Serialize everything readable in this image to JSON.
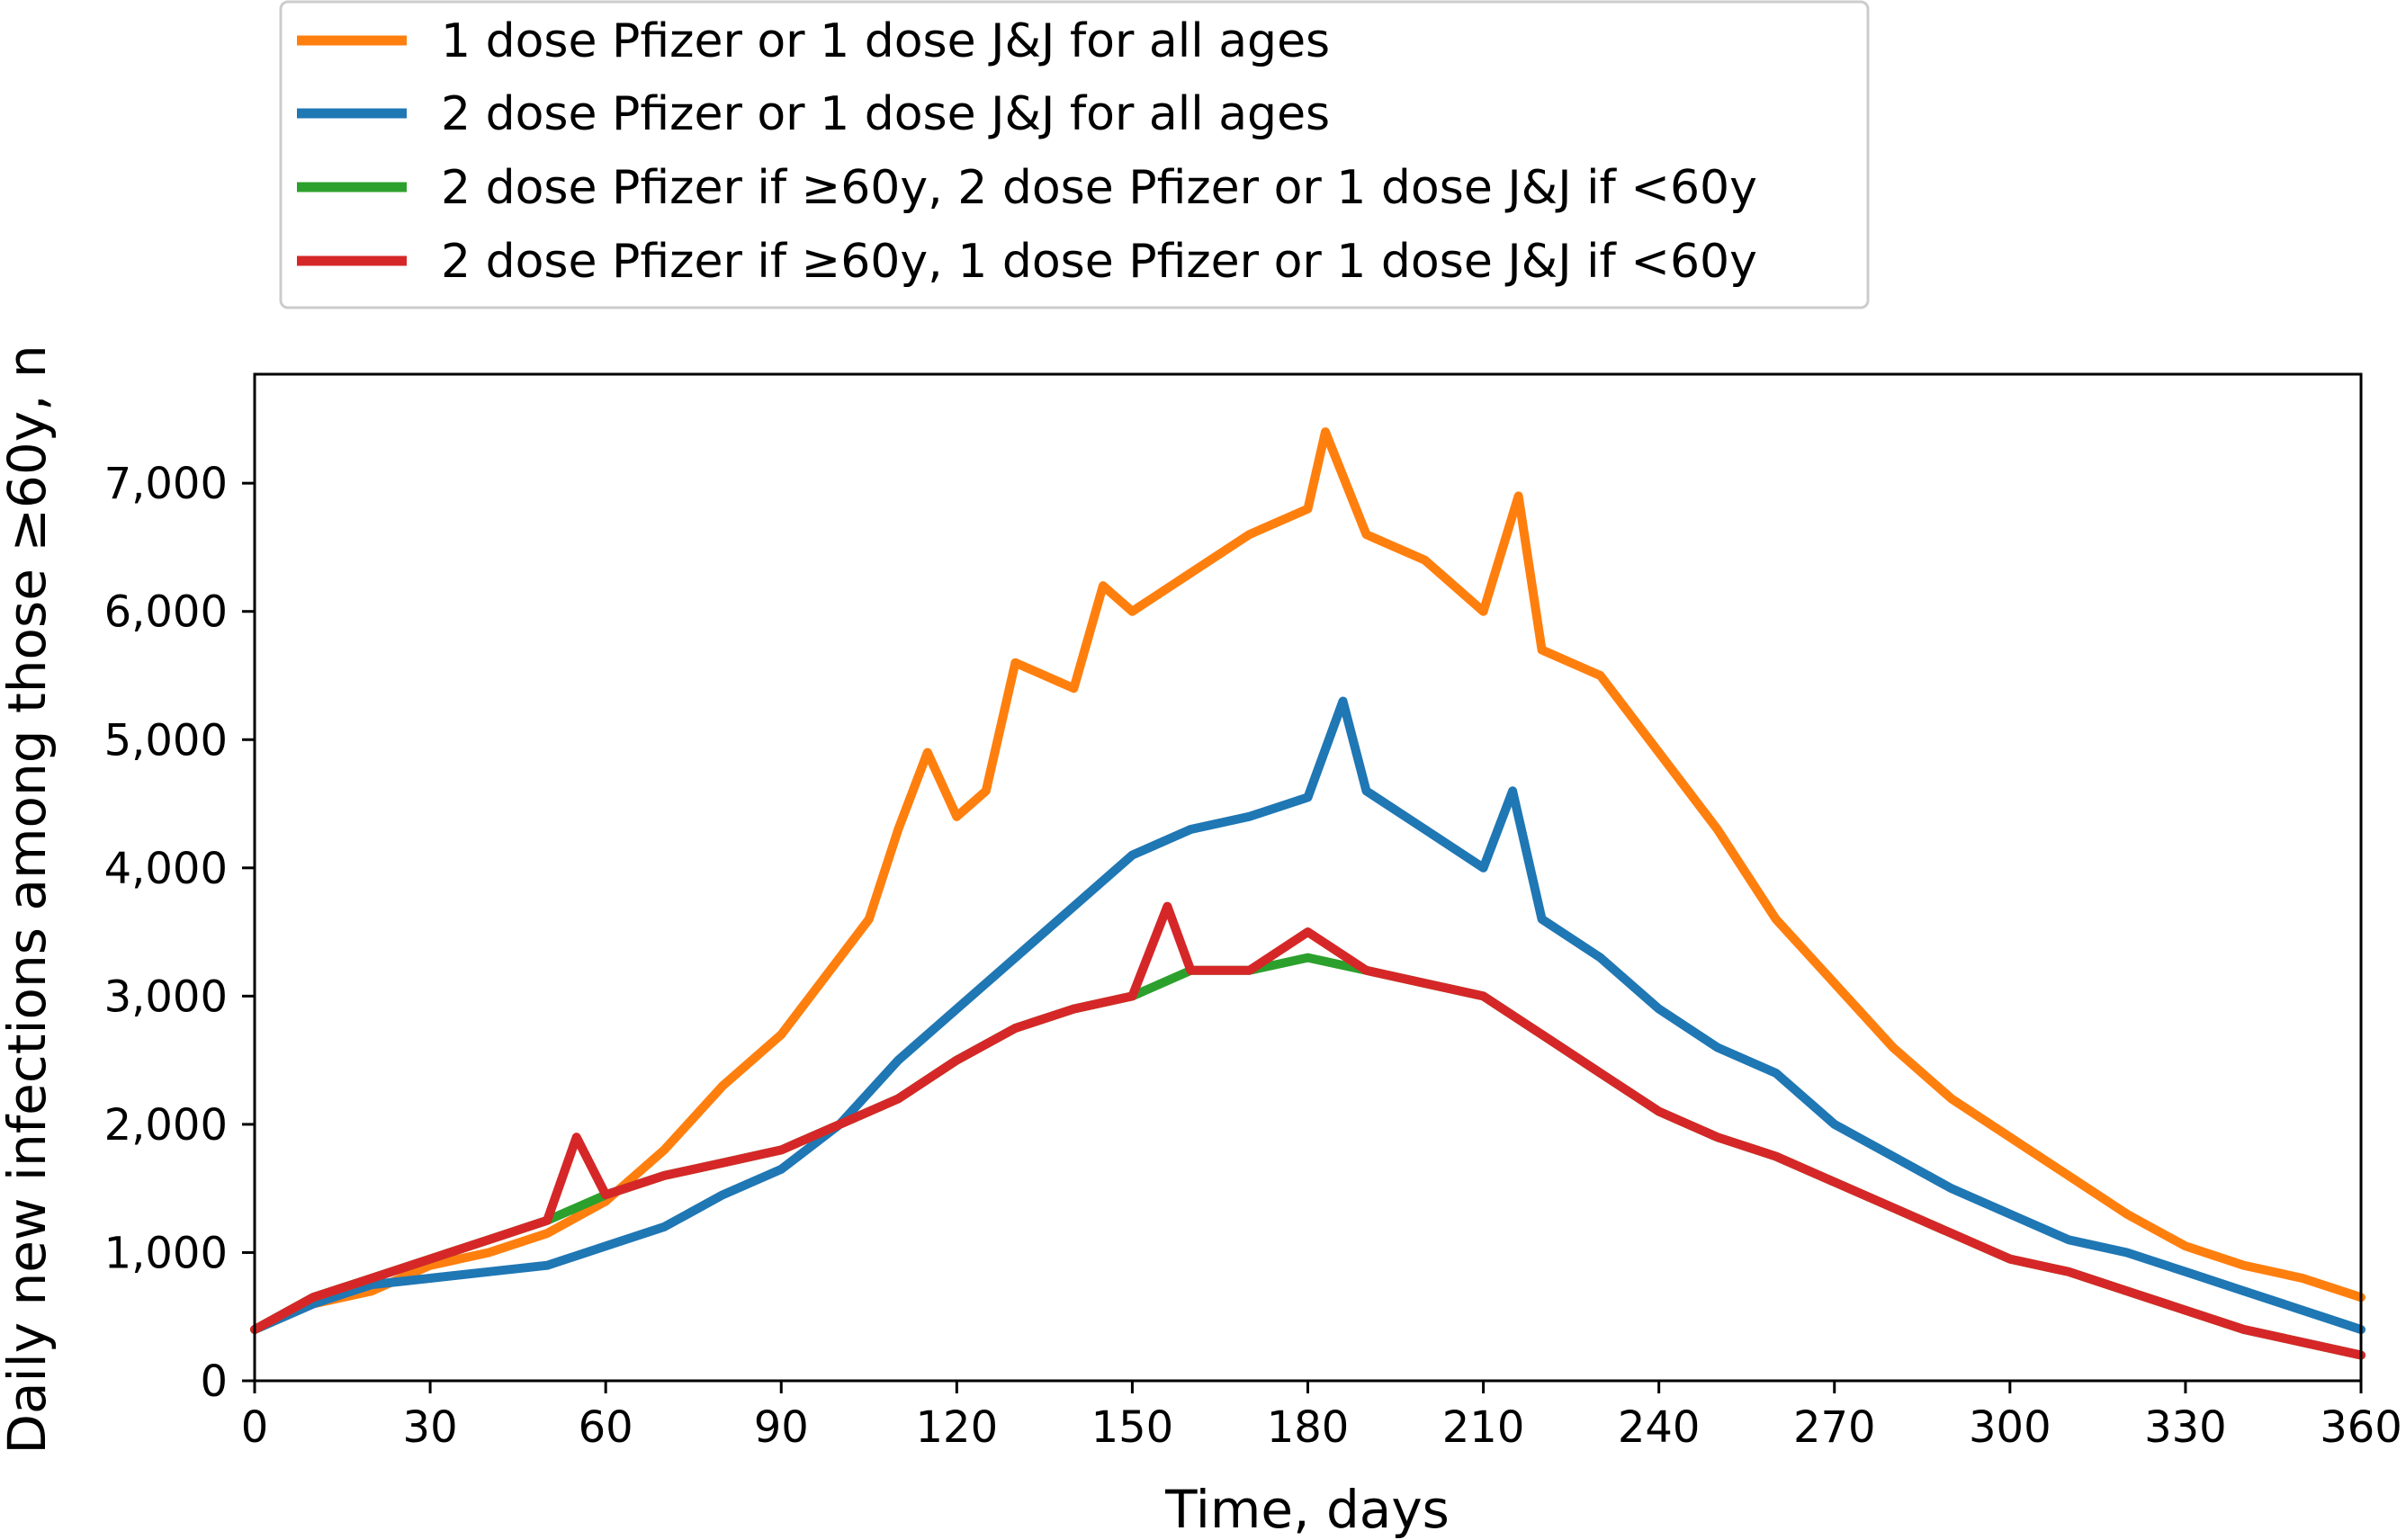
{
  "chart_data": {
    "type": "line",
    "xlabel": "Time, days",
    "ylabel": "Daily new infections among those ≥60y, n",
    "xlim": [
      0,
      360
    ],
    "ylim": [
      0,
      7850
    ],
    "xticks": [
      0,
      30,
      60,
      90,
      120,
      150,
      180,
      210,
      240,
      270,
      300,
      330,
      360
    ],
    "xtick_labels": [
      "0",
      "30",
      "60",
      "90",
      "120",
      "150",
      "180",
      "210",
      "240",
      "270",
      "300",
      "330",
      "360"
    ],
    "yticks": [
      0,
      1000,
      2000,
      3000,
      4000,
      5000,
      6000,
      7000
    ],
    "ytick_labels": [
      "0",
      "1,000",
      "2,000",
      "3,000",
      "4,000",
      "5,000",
      "6,000",
      "7,000"
    ],
    "grid": false,
    "legend_position": "above plot, top-left",
    "series": [
      {
        "name": "1 dose Pfizer or 1 dose J&J for all ages",
        "color": "#ff7f0e",
        "x": [
          0,
          10,
          20,
          30,
          40,
          50,
          60,
          70,
          80,
          90,
          100,
          105,
          110,
          115,
          120,
          125,
          130,
          140,
          145,
          150,
          160,
          170,
          180,
          183,
          190,
          200,
          210,
          216,
          220,
          230,
          240,
          250,
          260,
          270,
          280,
          290,
          300,
          310,
          320,
          330,
          340,
          350,
          360
        ],
        "y": [
          400,
          600,
          700,
          900,
          1000,
          1150,
          1400,
          1800,
          2300,
          2700,
          3300,
          3600,
          4300,
          4900,
          4400,
          4600,
          5600,
          5400,
          6200,
          6000,
          6300,
          6600,
          6800,
          7400,
          6600,
          6400,
          6000,
          6900,
          5700,
          5500,
          4900,
          4300,
          3600,
          3100,
          2600,
          2200,
          1900,
          1600,
          1300,
          1050,
          900,
          800,
          650
        ]
      },
      {
        "name": "2 dose Pfizer or 1 dose J&J for all ages",
        "color": "#1f77b4",
        "x": [
          0,
          10,
          20,
          30,
          40,
          50,
          60,
          70,
          80,
          90,
          100,
          110,
          120,
          130,
          140,
          150,
          160,
          170,
          180,
          186,
          190,
          200,
          210,
          215,
          220,
          230,
          240,
          250,
          260,
          270,
          280,
          290,
          300,
          310,
          320,
          330,
          340,
          350,
          360
        ],
        "y": [
          400,
          600,
          750,
          800,
          850,
          900,
          1050,
          1200,
          1450,
          1650,
          2000,
          2500,
          2900,
          3300,
          3700,
          4100,
          4300,
          4400,
          4550,
          5300,
          4600,
          4300,
          4000,
          4600,
          3600,
          3300,
          2900,
          2600,
          2400,
          2000,
          1750,
          1500,
          1300,
          1100,
          1000,
          850,
          700,
          550,
          400
        ]
      },
      {
        "name": "2 dose Pfizer if ≥60y, 2 dose Pfizer or 1 dose J&J if <60y",
        "color": "#2ca02c",
        "x": [
          0,
          10,
          20,
          30,
          40,
          50,
          60,
          70,
          80,
          90,
          100,
          110,
          120,
          130,
          140,
          150,
          160,
          170,
          180,
          190,
          200,
          210,
          220,
          230,
          240,
          250,
          260,
          270,
          280,
          290,
          300,
          310,
          320,
          330,
          340,
          350,
          360
        ],
        "y": [
          400,
          650,
          800,
          950,
          1100,
          1250,
          1450,
          1600,
          1700,
          1800,
          2000,
          2200,
          2500,
          2750,
          2900,
          3000,
          3200,
          3200,
          3300,
          3200,
          3100,
          3000,
          2700,
          2400,
          2100,
          1900,
          1750,
          1550,
          1350,
          1150,
          950,
          850,
          700,
          550,
          400,
          300,
          200
        ]
      },
      {
        "name": "2 dose Pfizer if ≥60y, 1 dose Pfizer or 1 dose J&J if <60y",
        "color": "#d62728",
        "x": [
          0,
          10,
          20,
          30,
          40,
          50,
          55,
          60,
          70,
          80,
          90,
          100,
          110,
          120,
          130,
          140,
          150,
          156,
          160,
          170,
          180,
          190,
          200,
          210,
          220,
          230,
          240,
          250,
          260,
          270,
          280,
          290,
          300,
          310,
          320,
          330,
          340,
          350,
          360
        ],
        "y": [
          400,
          650,
          800,
          950,
          1100,
          1250,
          1900,
          1450,
          1600,
          1700,
          1800,
          2000,
          2200,
          2500,
          2750,
          2900,
          3000,
          3700,
          3200,
          3200,
          3500,
          3200,
          3100,
          3000,
          2700,
          2400,
          2100,
          1900,
          1750,
          1550,
          1350,
          1150,
          950,
          850,
          700,
          550,
          400,
          300,
          200
        ]
      }
    ]
  }
}
